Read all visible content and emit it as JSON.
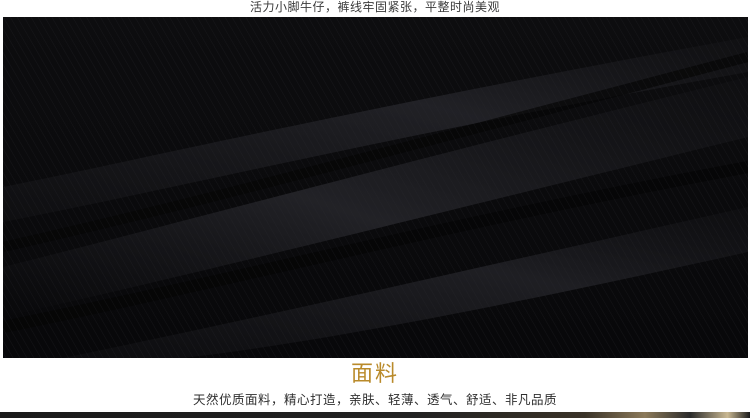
{
  "header": {
    "caption": "活力小脚牛仔，裤线牢固紧张，平整时尚美观"
  },
  "section": {
    "title": "面料",
    "description": "天然优质面料，精心打造，亲肤、轻薄、透气、舒适、非凡品质"
  },
  "colors": {
    "title_accent": "#b98a2a",
    "fabric_base": "#0b0b0c",
    "text": "#2e2e2e"
  }
}
